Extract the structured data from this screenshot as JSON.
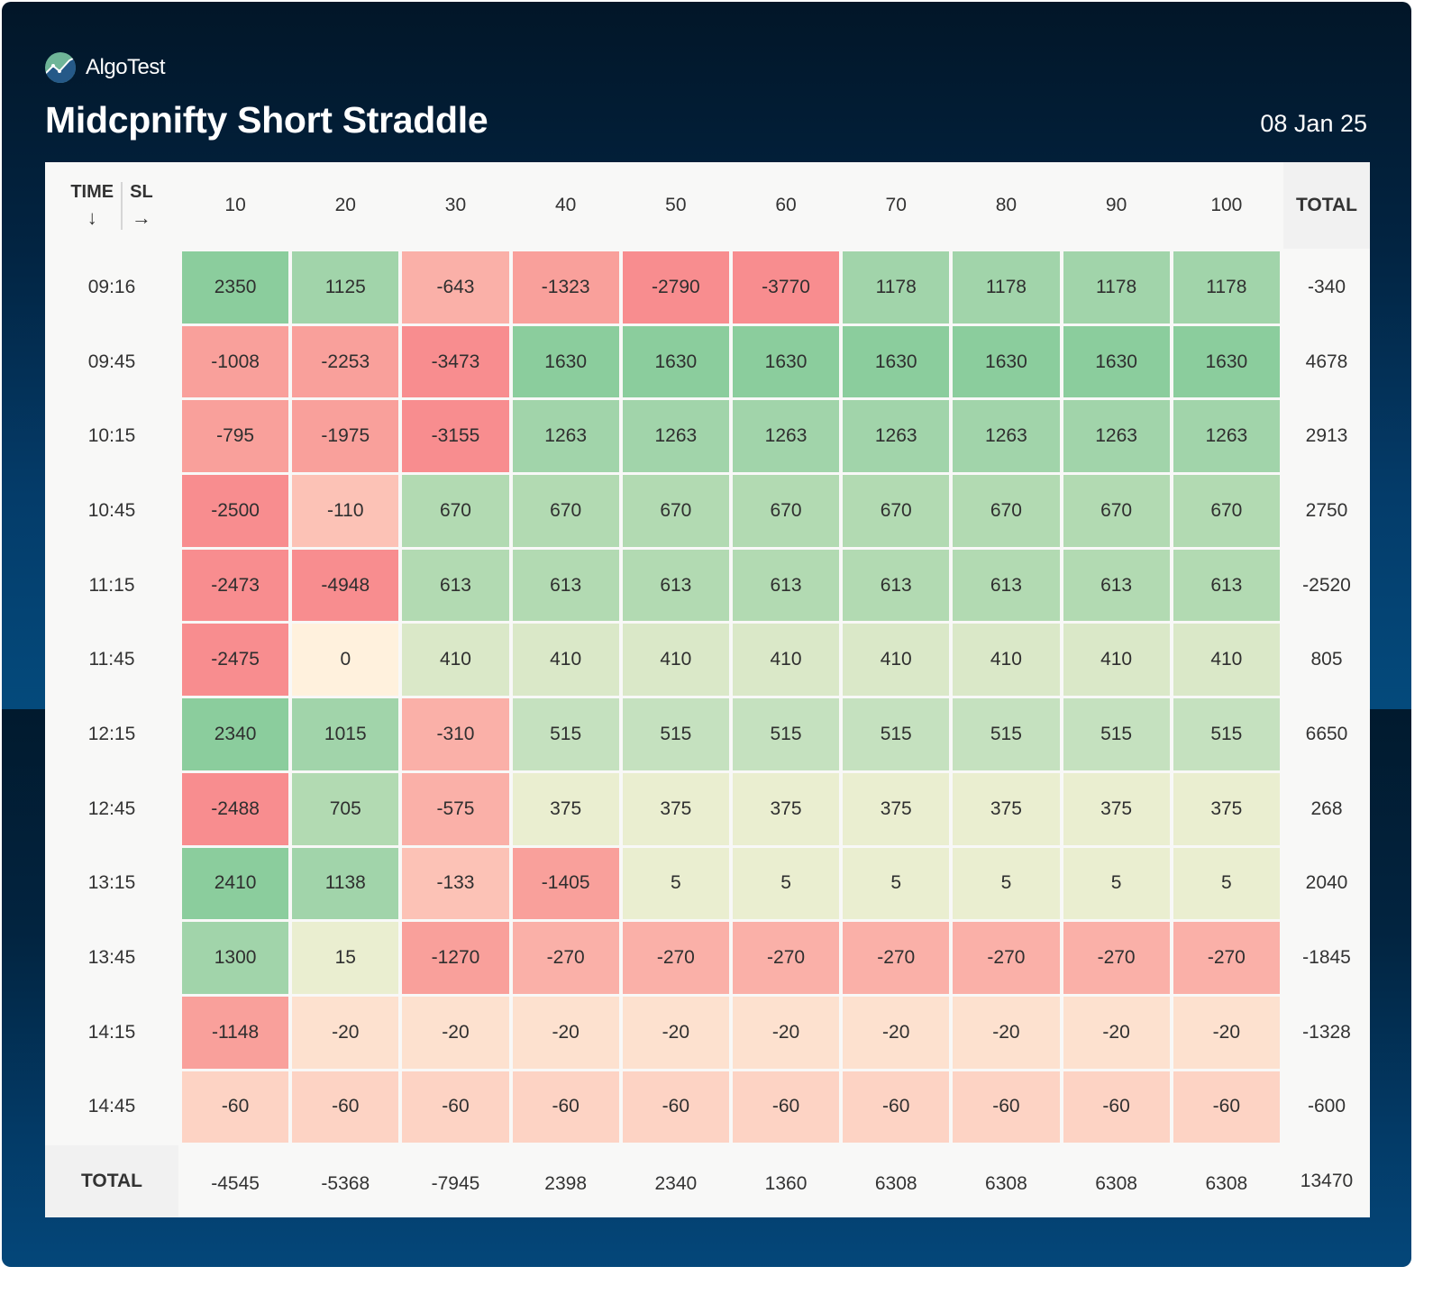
{
  "brand": {
    "name": "AlgoTest",
    "logo_icon": "algotest-logo-icon"
  },
  "header": {
    "title": "Midcpnifty Short Straddle",
    "date": "08 Jan 25"
  },
  "table": {
    "corner": {
      "row_axis_label": "TIME",
      "row_axis_arrow": "↓",
      "col_axis_label": "SL",
      "col_axis_arrow": "→"
    },
    "columns": [
      "10",
      "20",
      "30",
      "40",
      "50",
      "60",
      "70",
      "80",
      "90",
      "100"
    ],
    "total_label": "TOTAL",
    "rows": [
      {
        "time": "09:16",
        "values": [
          2350,
          1125,
          -643,
          -1323,
          -2790,
          -3770,
          1178,
          1178,
          1178,
          1178
        ],
        "total": "-340"
      },
      {
        "time": "09:45",
        "values": [
          -1008,
          -2253,
          -3473,
          1630,
          1630,
          1630,
          1630,
          1630,
          1630,
          1630
        ],
        "total": "4678"
      },
      {
        "time": "10:15",
        "values": [
          -795,
          -1975,
          -3155,
          1263,
          1263,
          1263,
          1263,
          1263,
          1263,
          1263
        ],
        "total": "2913"
      },
      {
        "time": "10:45",
        "values": [
          -2500,
          -110,
          670,
          670,
          670,
          670,
          670,
          670,
          670,
          670
        ],
        "total": "2750"
      },
      {
        "time": "11:15",
        "values": [
          -2473,
          -4948,
          613,
          613,
          613,
          613,
          613,
          613,
          613,
          613
        ],
        "total": "-2520"
      },
      {
        "time": "11:45",
        "values": [
          -2475,
          0,
          410,
          410,
          410,
          410,
          410,
          410,
          410,
          410
        ],
        "total": "805"
      },
      {
        "time": "12:15",
        "values": [
          2340,
          1015,
          -310,
          515,
          515,
          515,
          515,
          515,
          515,
          515
        ],
        "total": "6650"
      },
      {
        "time": "12:45",
        "values": [
          -2488,
          705,
          -575,
          375,
          375,
          375,
          375,
          375,
          375,
          375
        ],
        "total": "268"
      },
      {
        "time": "13:15",
        "values": [
          2410,
          1138,
          -133,
          -1405,
          5,
          5,
          5,
          5,
          5,
          5
        ],
        "total": "2040"
      },
      {
        "time": "13:45",
        "values": [
          1300,
          15,
          -1270,
          -270,
          -270,
          -270,
          -270,
          -270,
          -270,
          -270
        ],
        "total": "-1845"
      },
      {
        "time": "14:15",
        "values": [
          -1148,
          -20,
          -20,
          -20,
          -20,
          -20,
          -20,
          -20,
          -20,
          -20
        ],
        "total": "-1328"
      },
      {
        "time": "14:45",
        "values": [
          -60,
          -60,
          -60,
          -60,
          -60,
          -60,
          -60,
          -60,
          -60,
          -60
        ],
        "total": "-600"
      }
    ],
    "column_totals": [
      "-4545",
      "-5368",
      "-7945",
      "2398",
      "2340",
      "1360",
      "6308",
      "6308",
      "6308",
      "6308"
    ],
    "grand_total": "13470"
  },
  "colors": {
    "strong_green": "#8bcd9d",
    "mid_green": "#a1d4aa",
    "light_green": "#c5e1bf",
    "pale_green": "#dae8c8",
    "yellowish": "#eaeed0",
    "neutral": "#fff1dd",
    "pale_red": "#fde1cf",
    "light_red": "#fdd3c4",
    "mid_red": "#fab0a8",
    "red": "#f9a09b",
    "strong_red": "#f88d8f"
  }
}
